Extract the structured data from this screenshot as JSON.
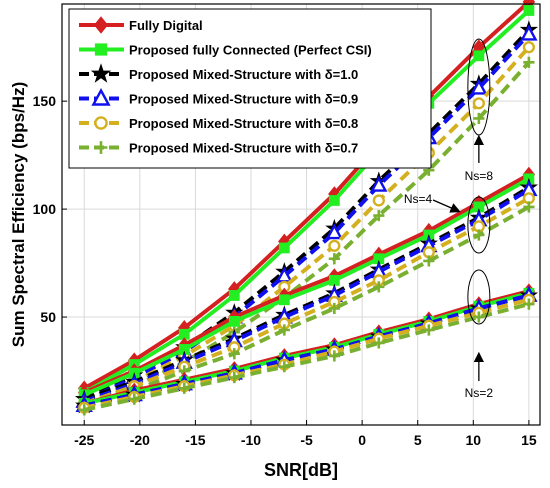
{
  "chart_data": {
    "type": "line",
    "xlabel": "SNR[dB]",
    "ylabel": "Sum Spectral Efficiency (bps/Hz)",
    "xlim": [
      -27,
      16
    ],
    "ylim": [
      0,
      195
    ],
    "xticks": [
      -25,
      -20,
      -15,
      -10,
      -5,
      0,
      5,
      10,
      15
    ],
    "yticks": [
      50,
      100,
      150
    ],
    "grid": true,
    "legend_position": "top-left",
    "x": [
      -25,
      -20.5,
      -16,
      -11.5,
      -7,
      -2.5,
      1.5,
      6,
      10.5,
      15
    ],
    "series": [
      {
        "name": "Fully Digital",
        "color": "#d42020",
        "marker": "diamond",
        "dash": "solid"
      },
      {
        "name": "Proposed fully Connected (Perfect CSI)",
        "color": "#22ee22",
        "marker": "square",
        "dash": "solid"
      },
      {
        "name": "Proposed Mixed-Structure with δ=1.0",
        "color": "#000000",
        "marker": "star",
        "dash": "dashed"
      },
      {
        "name": "Proposed Mixed-Structure with δ=0.9",
        "color": "#1010ee",
        "marker": "triangle",
        "dash": "dashed"
      },
      {
        "name": "Proposed Mixed-Structure with δ=0.8",
        "color": "#d4b020",
        "marker": "circle",
        "dash": "dashed"
      },
      {
        "name": "Proposed Mixed-Structure with δ=0.7",
        "color": "#7ab030",
        "marker": "plus",
        "dash": "dashed"
      }
    ],
    "groups": [
      {
        "label": "Ns=8",
        "values": [
          [
            17,
            30,
            45,
            63,
            85,
            107,
            130,
            152,
            175,
            196
          ],
          [
            15,
            28,
            42,
            60,
            82,
            104,
            127,
            149,
            171,
            192
          ],
          [
            12,
            23,
            36,
            52,
            71,
            91,
            113,
            135,
            158,
            183
          ],
          [
            11,
            22,
            34,
            50,
            69,
            89,
            111,
            133,
            156,
            181
          ],
          [
            10,
            20,
            32,
            46,
            64,
            83,
            104,
            126,
            149,
            175
          ],
          [
            9,
            18,
            29,
            43,
            59,
            77,
            97,
            118,
            142,
            168
          ]
        ]
      },
      {
        "label": "Ns=4",
        "values": [
          [
            15,
            25,
            37,
            50,
            60,
            69,
            79,
            90,
            103,
            116
          ],
          [
            14,
            24,
            35,
            48,
            58,
            67,
            77,
            88,
            101,
            114
          ],
          [
            12,
            20,
            30,
            40,
            51,
            61,
            72,
            84,
            96,
            110
          ],
          [
            11,
            19,
            29,
            39,
            50,
            60,
            71,
            83,
            95,
            109
          ],
          [
            10,
            18,
            27,
            36,
            47,
            57,
            67,
            80,
            92,
            105
          ],
          [
            9,
            16,
            25,
            33,
            44,
            54,
            64,
            76,
            88,
            101
          ]
        ]
      },
      {
        "label": "Ns=2",
        "values": [
          [
            10,
            16,
            21,
            26,
            32,
            37,
            43,
            49,
            56,
            62
          ],
          [
            10,
            15,
            20,
            25,
            31,
            36,
            42,
            48,
            55,
            61
          ],
          [
            9,
            14,
            19,
            24,
            30,
            35,
            41,
            47,
            54,
            60
          ],
          [
            9,
            14,
            19,
            24,
            30,
            35,
            41,
            47,
            54,
            60
          ],
          [
            8,
            13,
            18,
            23,
            28,
            34,
            40,
            46,
            52,
            58
          ],
          [
            7,
            12,
            17,
            22,
            27,
            32,
            38,
            44,
            50,
            56
          ]
        ]
      }
    ],
    "annotations": [
      "Ns=8",
      "Ns=4",
      "Ns=2"
    ]
  }
}
